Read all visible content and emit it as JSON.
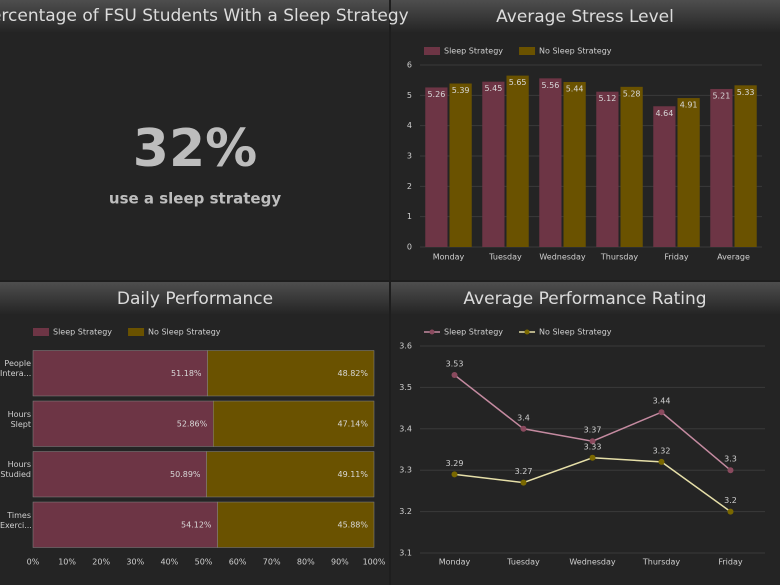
{
  "kpi": {
    "title": "Percentage of FSU Students With a Sleep Strategy",
    "value": "32%",
    "caption": "use a sleep strategy"
  },
  "chart_data": [
    {
      "type": "bar",
      "title": "Average Stress Level",
      "categories": [
        "Monday",
        "Tuesday",
        "Wednesday",
        "Thursday",
        "Friday",
        "Average"
      ],
      "series": [
        {
          "name": "Sleep Strategy",
          "color": "#6d3545",
          "values": [
            5.26,
            5.45,
            5.56,
            5.12,
            4.64,
            5.21
          ]
        },
        {
          "name": "No Sleep Strategy",
          "color": "#6a5200",
          "values": [
            5.39,
            5.65,
            5.44,
            5.28,
            4.91,
            5.33
          ]
        }
      ],
      "ylim": [
        0,
        6
      ],
      "yticks": [
        0,
        1,
        2,
        3,
        4,
        5,
        6
      ],
      "grid": true
    },
    {
      "type": "hbar",
      "title": "Daily Performance",
      "categories": [
        "People Intera...",
        "Hours Slept",
        "Hours Studied",
        "Times Exerci..."
      ],
      "series": [
        {
          "name": "Sleep Strategy",
          "color": "#6d3545",
          "values": [
            51.18,
            52.86,
            50.89,
            54.12
          ],
          "value_labels": [
            "51.18%",
            "52.86%",
            "50.89%",
            "54.12%"
          ]
        },
        {
          "name": "No Sleep Strategy",
          "color": "#6a5200",
          "values": [
            48.82,
            47.14,
            49.11,
            45.88
          ],
          "value_labels": [
            "48.82%",
            "47.14%",
            "49.11%",
            "45.88%"
          ]
        }
      ],
      "xlim": [
        0,
        100
      ],
      "xticks": [
        {
          "value": 0,
          "label": "0%"
        },
        {
          "value": 10,
          "label": "10%"
        },
        {
          "value": 20,
          "label": "20%"
        },
        {
          "value": 30,
          "label": "30%"
        },
        {
          "value": 40,
          "label": "40%"
        },
        {
          "value": 50,
          "label": "50%"
        },
        {
          "value": 60,
          "label": "60%"
        },
        {
          "value": 70,
          "label": "70%"
        },
        {
          "value": 80,
          "label": "80%"
        },
        {
          "value": 90,
          "label": "90%"
        },
        {
          "value": 100,
          "label": "100%"
        }
      ],
      "grid": false
    },
    {
      "type": "line",
      "title": "Average Performance Rating",
      "categories": [
        "Monday",
        "Tuesday",
        "Wednesday",
        "Thursday",
        "Friday"
      ],
      "series": [
        {
          "name": "Sleep Strategy",
          "color": "#c48aa0",
          "marker_color": "#8a4a5e",
          "values": [
            3.53,
            3.4,
            3.37,
            3.44,
            3.3
          ]
        },
        {
          "name": "No Sleep Strategy",
          "color": "#e6dfa8",
          "marker_color": "#7a6800",
          "values": [
            3.29,
            3.27,
            3.33,
            3.32,
            3.2
          ]
        }
      ],
      "ylim": [
        3.1,
        3.6
      ],
      "yticks": [
        3.1,
        3.2,
        3.3,
        3.4,
        3.5,
        3.6
      ],
      "grid": true
    }
  ]
}
